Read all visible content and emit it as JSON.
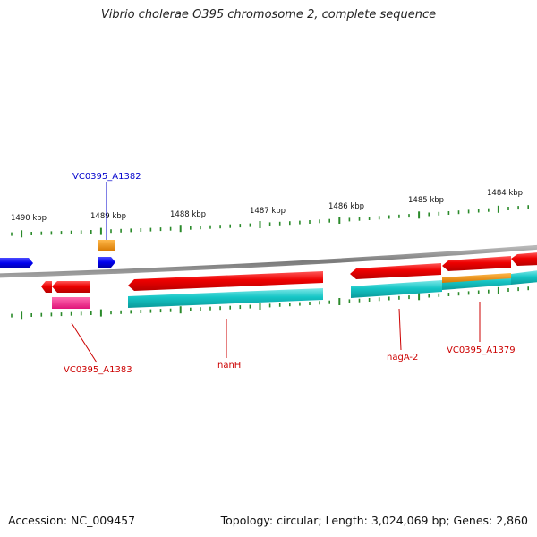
{
  "title": "Vibrio cholerae O395 chromosome 2, complete sequence",
  "colors": {
    "tick": "#2a8a2a",
    "backbone": "#8a8a8a",
    "forward_cds": "#0000ee",
    "reverse_cds": "#ee0000",
    "gene_teal": "#16c6c6",
    "orange": "#f08c00",
    "pink": "#ff2a8c",
    "label_forward": "#0000cc",
    "label_reverse": "#cc0000"
  },
  "ticks": [
    {
      "label": "1490 kbp"
    },
    {
      "label": "1489 kbp"
    },
    {
      "label": "1488 kbp"
    },
    {
      "label": "1487 kbp"
    },
    {
      "label": "1486 kbp"
    },
    {
      "label": "1485 kbp"
    },
    {
      "label": "1484 kbp"
    }
  ],
  "gene_labels": {
    "a1382": "VC0395_A1382",
    "a1383": "VC0395_A1383",
    "nanH": "nanH",
    "nagA2": "nagA-2",
    "a1379": "VC0395_A1379"
  },
  "footer": {
    "accession": "Accession: NC_009457",
    "stats": "Topology: circular; Length: 3,024,069 bp; Genes: 2,860"
  }
}
